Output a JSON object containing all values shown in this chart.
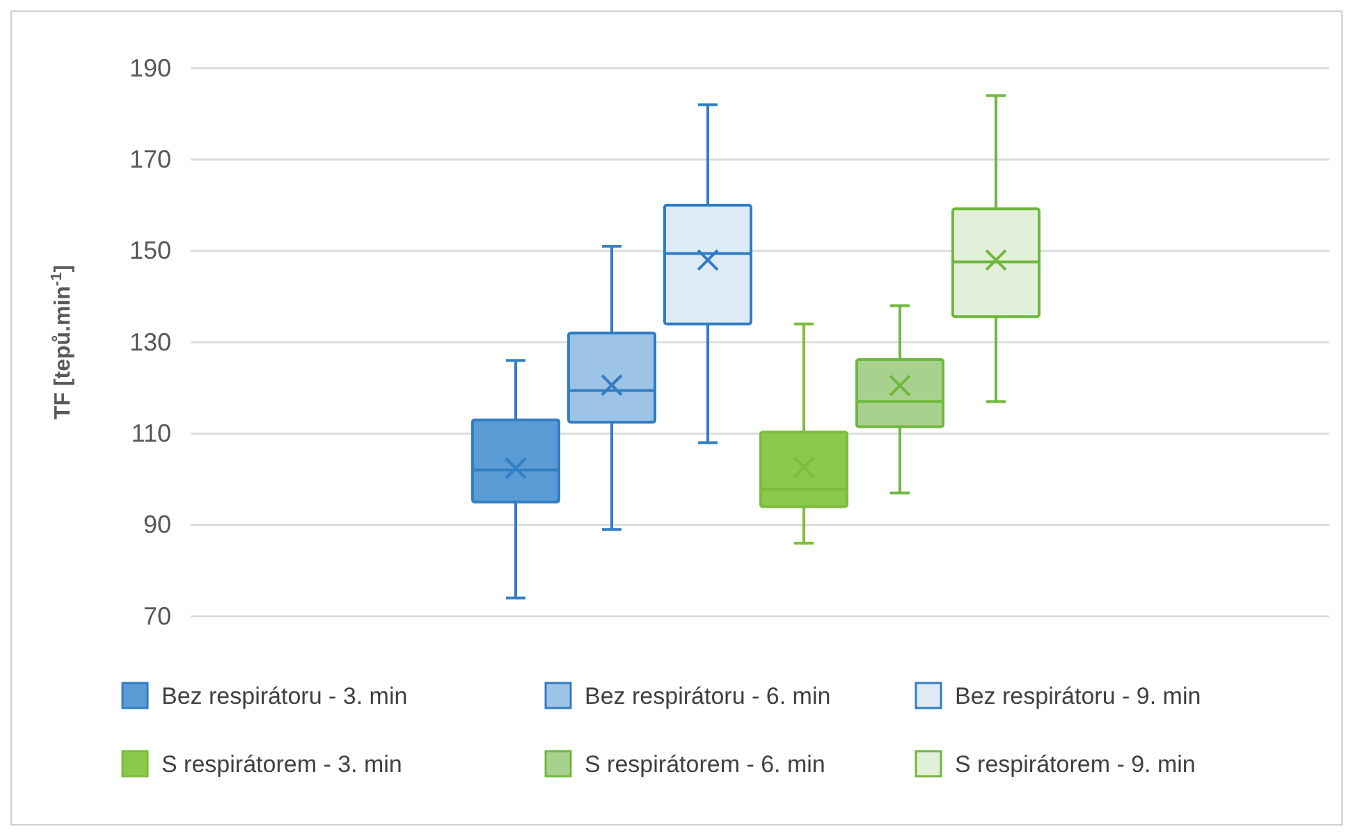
{
  "chart_data": {
    "type": "box",
    "ylabel": "TF [tepů.min$^{-1}$]",
    "categories": [
      null
    ],
    "ylim": [
      70,
      190
    ],
    "yticks": [
      70,
      90,
      110,
      130,
      150,
      170,
      190
    ],
    "grid": "y",
    "legend": "bottom",
    "tick_labels": "y",
    "series": [
      {
        "name": "Bez respirátoru - 3. min",
        "color": "#5b9bd5",
        "boxes": [
          {
            "low": 74,
            "q1": 95,
            "median": 102,
            "q3": 113,
            "high": 126,
            "mean": 102.4
          }
        ]
      },
      {
        "name": "Bez respirátoru - 6. min",
        "color": "#9dc3e6",
        "boxes": [
          {
            "low": 89,
            "q1": 112.5,
            "median": 119.4,
            "q3": 132,
            "high": 151,
            "mean": 120.6
          }
        ]
      },
      {
        "name": "Bez respirátoru - 9. min",
        "color": "#deebf7",
        "boxes": [
          {
            "low": 108,
            "q1": 134,
            "median": 149.4,
            "q3": 160,
            "high": 182,
            "mean": 148
          }
        ]
      },
      {
        "name": "S respirátorem - 3. min",
        "color": "#8cc84b",
        "boxes": [
          {
            "low": 86,
            "q1": 94,
            "median": 97.8,
            "q3": 110.3,
            "high": 134,
            "mean": 102.6
          }
        ]
      },
      {
        "name": "S respirátorem - 6. min",
        "color": "#a9d18e",
        "boxes": [
          {
            "low": 97,
            "q1": 111.5,
            "median": 117,
            "q3": 126.2,
            "high": 138,
            "mean": 120.5
          }
        ]
      },
      {
        "name": "S respirátorem - 9. min",
        "color": "#e2efd9",
        "boxes": [
          {
            "low": 117,
            "q1": 135.6,
            "median": 147.6,
            "q3": 159.2,
            "high": 184,
            "mean": 148
          }
        ]
      }
    ]
  }
}
